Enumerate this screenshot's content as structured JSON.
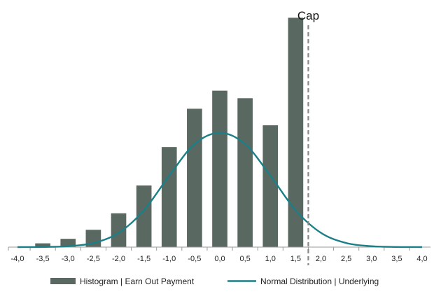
{
  "chart_data": {
    "type": "bar",
    "x_ticks": [
      "-4,0",
      "-3,5",
      "-3,0",
      "-2,5",
      "-2,0",
      "-1,5",
      "-1,0",
      "-0,5",
      "0,0",
      "0,5",
      "1,0",
      "1,5",
      "2,0",
      "2,5",
      "3,0",
      "3,5",
      "4,0"
    ],
    "xlim": [
      -4.0,
      4.0
    ],
    "ylim": [
      0,
      0.31
    ],
    "grid": false,
    "legend_position": "bottom",
    "series": [
      {
        "name": "Histogram | Earn Out Payment",
        "type": "bar",
        "color": "#5a6862",
        "x": [
          -3.5,
          -3.0,
          -2.5,
          -2.0,
          -1.5,
          -1.0,
          -0.5,
          0.0,
          0.5,
          1.0,
          1.5
        ],
        "values": [
          0.005,
          0.011,
          0.023,
          0.045,
          0.082,
          0.133,
          0.184,
          0.208,
          0.198,
          0.162,
          0.305
        ]
      },
      {
        "name": "Normal Distribution | Underlying",
        "type": "line",
        "color": "#1a7f86",
        "x": [
          -4.0,
          -3.5,
          -3.0,
          -2.5,
          -2.0,
          -1.5,
          -1.0,
          -0.5,
          0.0,
          0.5,
          1.0,
          1.5,
          2.0,
          2.5,
          3.0,
          3.5,
          4.0
        ],
        "values": [
          0.0,
          0.0002,
          0.0012,
          0.0054,
          0.019,
          0.049,
          0.095,
          0.137,
          0.152,
          0.137,
          0.095,
          0.049,
          0.019,
          0.0054,
          0.0012,
          0.0002,
          0.0
        ]
      }
    ],
    "annotations": [
      {
        "label": "Cap",
        "type": "vertical-dashed-line",
        "x": 1.75,
        "color": "#888888"
      }
    ]
  }
}
